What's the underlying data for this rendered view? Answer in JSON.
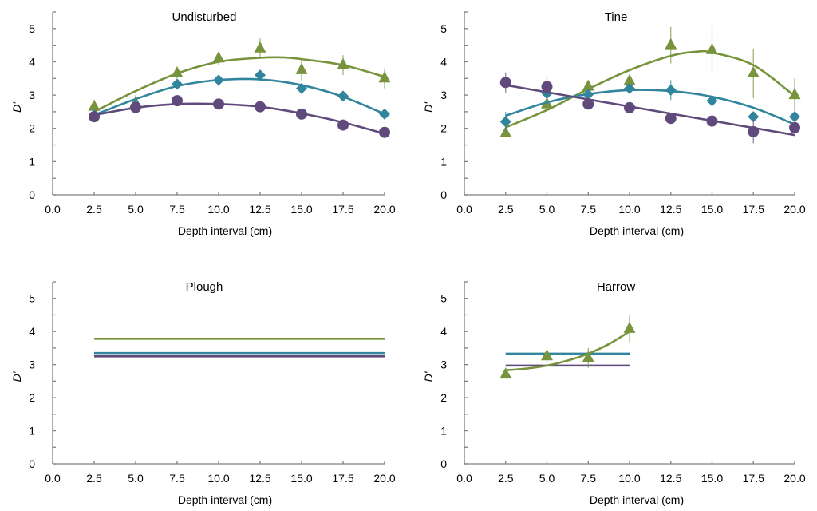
{
  "chart_data": [
    {
      "type": "scatter",
      "title": "Undisturbed",
      "xlabel": "Depth interval (cm)",
      "ylabel": "D'",
      "xlim": [
        0,
        20
      ],
      "ylim": [
        0,
        5.5
      ],
      "xticks": [
        "0.0",
        "2.5",
        "5.0",
        "7.5",
        "10.0",
        "12.5",
        "15.0",
        "17.5",
        "20.0"
      ],
      "yticks": [
        "0",
        "1",
        "2",
        "3",
        "4",
        "5"
      ],
      "grid": false,
      "series": [
        {
          "name": "green-triangle",
          "color": "#77933c",
          "marker": "triangle",
          "x": [
            2.5,
            5,
            7.5,
            10,
            12.5,
            15,
            17.5,
            20
          ],
          "y": [
            2.65,
            2.75,
            3.65,
            4.1,
            4.4,
            3.75,
            3.9,
            3.5
          ],
          "err": [
            0.15,
            0.25,
            0.15,
            0.2,
            0.3,
            0.3,
            0.3,
            0.3
          ],
          "fit": {
            "x": [
              2.5,
              5,
              7.5,
              10,
              12.5,
              14,
              15,
              17.5,
              20
            ],
            "y": [
              2.5,
              3.12,
              3.65,
              4.0,
              4.12,
              4.13,
              4.08,
              3.9,
              3.55
            ]
          }
        },
        {
          "name": "teal-diamond",
          "color": "#31859c",
          "marker": "diamond",
          "x": [
            2.5,
            5,
            7.5,
            10,
            12.5,
            15,
            17.5,
            20
          ],
          "y": [
            2.4,
            2.7,
            3.33,
            3.45,
            3.6,
            3.2,
            2.97,
            2.43
          ],
          "err": [
            0.1,
            0.1,
            0.1,
            0.1,
            0.1,
            0.1,
            0.1,
            0.1
          ],
          "fit": {
            "x": [
              2.5,
              5,
              7.5,
              10,
              12.5,
              15,
              17.5,
              20
            ],
            "y": [
              2.4,
              2.88,
              3.27,
              3.45,
              3.47,
              3.3,
              2.95,
              2.43
            ]
          }
        },
        {
          "name": "purple-circle",
          "color": "#604a7b",
          "marker": "circle",
          "x": [
            2.5,
            5,
            7.5,
            10,
            12.5,
            15,
            17.5,
            20
          ],
          "y": [
            2.35,
            2.63,
            2.83,
            2.73,
            2.65,
            2.43,
            2.1,
            1.88
          ],
          "err": [
            0.1,
            0.15,
            0.1,
            0.1,
            0.1,
            0.15,
            0.1,
            0.1
          ],
          "fit": {
            "x": [
              2.5,
              5,
              7.5,
              10,
              12.5,
              15,
              17.5,
              20
            ],
            "y": [
              2.4,
              2.62,
              2.73,
              2.73,
              2.65,
              2.45,
              2.18,
              1.84
            ]
          }
        }
      ]
    },
    {
      "type": "scatter",
      "title": "Tine",
      "xlabel": "Depth interval (cm)",
      "ylabel": "D'",
      "xlim": [
        0,
        20
      ],
      "ylim": [
        0,
        5.5
      ],
      "xticks": [
        "0.0",
        "2.5",
        "5.0",
        "7.5",
        "10.0",
        "12.5",
        "15.0",
        "17.5",
        "20.0"
      ],
      "yticks": [
        "0",
        "1",
        "2",
        "3",
        "4",
        "5"
      ],
      "grid": false,
      "series": [
        {
          "name": "green-triangle",
          "color": "#77933c",
          "marker": "triangle",
          "x": [
            2.5,
            5,
            7.5,
            10,
            12.5,
            15,
            17.5,
            20
          ],
          "y": [
            1.85,
            2.72,
            3.25,
            3.42,
            4.5,
            4.35,
            3.65,
            3.0
          ],
          "err": [
            0.1,
            0.2,
            0.15,
            0.15,
            0.55,
            0.7,
            0.75,
            0.5
          ],
          "fit": {
            "x": [
              2.5,
              5,
              7.5,
              10,
              12.5,
              14,
              15,
              17.5,
              20
            ],
            "y": [
              2.03,
              2.55,
              3.18,
              3.75,
              4.18,
              4.3,
              4.28,
              3.9,
              2.97
            ]
          }
        },
        {
          "name": "teal-diamond",
          "color": "#31859c",
          "marker": "diamond",
          "x": [
            2.5,
            5,
            7.5,
            10,
            12.5,
            15,
            17.5,
            20
          ],
          "y": [
            2.2,
            3.05,
            3.02,
            3.2,
            3.15,
            2.83,
            2.35,
            2.35
          ],
          "err": [
            0.3,
            0.1,
            0.1,
            0.1,
            0.3,
            0.1,
            0.1,
            0.1
          ],
          "fit": {
            "x": [
              2.5,
              5,
              7.5,
              10,
              12.5,
              15,
              17.5,
              20
            ],
            "y": [
              2.38,
              2.78,
              3.03,
              3.15,
              3.12,
              2.95,
              2.62,
              2.12
            ]
          }
        },
        {
          "name": "purple-circle",
          "color": "#604a7b",
          "marker": "circle",
          "x": [
            2.5,
            5,
            7.5,
            10,
            12.5,
            15,
            17.5,
            20
          ],
          "y": [
            3.38,
            3.25,
            2.73,
            2.62,
            2.3,
            2.22,
            1.9,
            2.02
          ],
          "err": [
            0.3,
            0.3,
            0.1,
            0.1,
            0.1,
            0.1,
            0.35,
            0.1
          ],
          "fit": {
            "x": [
              2.5,
              20
            ],
            "y": [
              3.3,
              1.8
            ]
          }
        }
      ]
    },
    {
      "type": "line",
      "title": "Plough",
      "xlabel": "Depth interval (cm)",
      "ylabel": "D'",
      "xlim": [
        0,
        20
      ],
      "ylim": [
        0,
        5.5
      ],
      "xticks": [
        "0.0",
        "2.5",
        "5.0",
        "7.5",
        "10.0",
        "12.5",
        "15.0",
        "17.5",
        "20.0"
      ],
      "yticks": [
        "0",
        "1",
        "2",
        "3",
        "4",
        "5"
      ],
      "grid": false,
      "series": [
        {
          "name": "green-line",
          "color": "#77933c",
          "marker": "none",
          "x": [],
          "y": [],
          "err": [],
          "fit": {
            "x": [
              2.5,
              20
            ],
            "y": [
              3.78,
              3.78
            ]
          }
        },
        {
          "name": "teal-line",
          "color": "#31859c",
          "marker": "none",
          "x": [],
          "y": [],
          "err": [],
          "fit": {
            "x": [
              2.5,
              20
            ],
            "y": [
              3.35,
              3.35
            ]
          }
        },
        {
          "name": "purple-line",
          "color": "#604a7b",
          "marker": "none",
          "x": [],
          "y": [],
          "err": [],
          "fit": {
            "x": [
              2.5,
              20
            ],
            "y": [
              3.25,
              3.25
            ]
          }
        }
      ]
    },
    {
      "type": "scatter",
      "title": "Harrow",
      "xlabel": "Depth interval (cm)",
      "ylabel": "D'",
      "xlim": [
        0,
        20
      ],
      "ylim": [
        0,
        5.5
      ],
      "xticks": [
        "0.0",
        "2.5",
        "5.0",
        "7.5",
        "10.0",
        "12.5",
        "15.0",
        "17.5",
        "20.0"
      ],
      "yticks": [
        "0",
        "1",
        "2",
        "3",
        "4",
        "5"
      ],
      "grid": false,
      "series": [
        {
          "name": "teal-line",
          "color": "#31859c",
          "marker": "none",
          "x": [],
          "y": [],
          "err": [],
          "fit": {
            "x": [
              2.5,
              10
            ],
            "y": [
              3.33,
              3.33
            ]
          }
        },
        {
          "name": "purple-line",
          "color": "#604a7b",
          "marker": "none",
          "x": [],
          "y": [],
          "err": [],
          "fit": {
            "x": [
              2.5,
              10
            ],
            "y": [
              2.97,
              2.97
            ]
          }
        },
        {
          "name": "green-triangle",
          "color": "#77933c",
          "marker": "triangle",
          "x": [
            2.5,
            5,
            7.5,
            10
          ],
          "y": [
            2.7,
            3.25,
            3.2,
            4.08
          ],
          "err": [
            0.1,
            0.2,
            0.3,
            0.4
          ],
          "fit": {
            "x": [
              2.5,
              3.75,
              5,
              6.25,
              7.5,
              8.75,
              10
            ],
            "y": [
              2.83,
              2.88,
              2.97,
              3.12,
              3.33,
              3.62,
              4.0
            ]
          }
        }
      ]
    }
  ]
}
